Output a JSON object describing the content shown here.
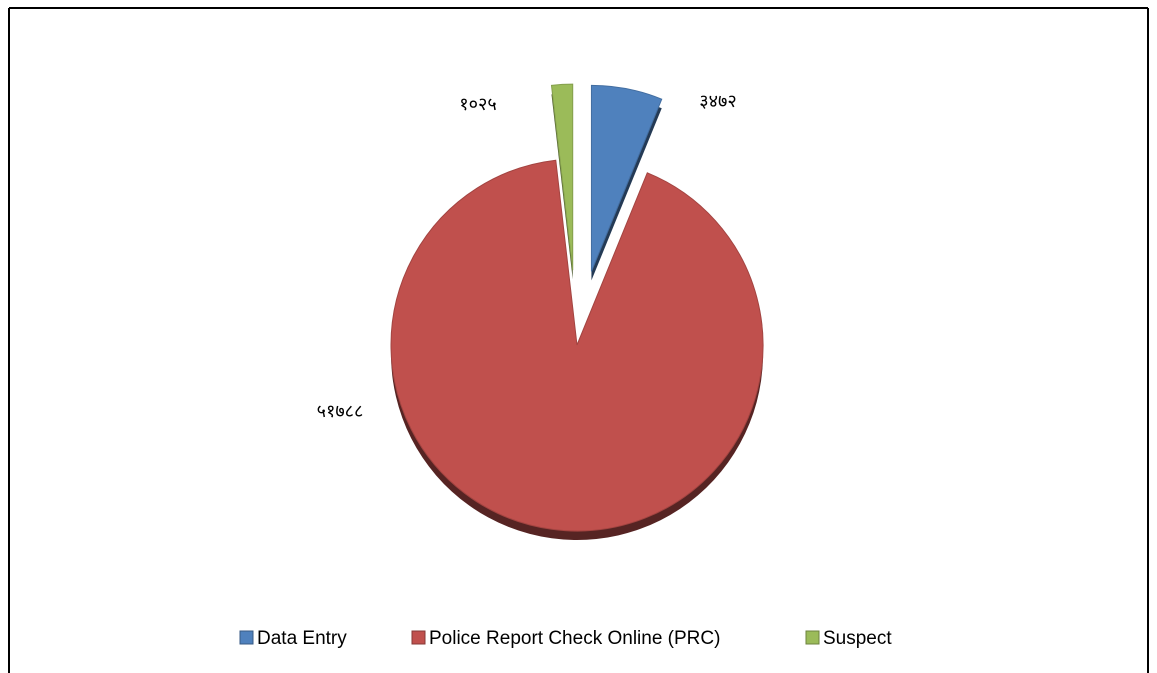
{
  "chart_data": {
    "type": "pie",
    "categories": [
      "Data Entry",
      "Police Report Check Online (PRC)",
      "Suspect"
    ],
    "values": [
      3472,
      51788,
      1025
    ],
    "value_labels": [
      "३४७२",
      "५१७८८",
      "१०२५"
    ],
    "colors": [
      "#4f81bd",
      "#c0504d",
      "#9bbb59"
    ],
    "explode": [
      true,
      false,
      true
    ],
    "legend": "bottom"
  }
}
